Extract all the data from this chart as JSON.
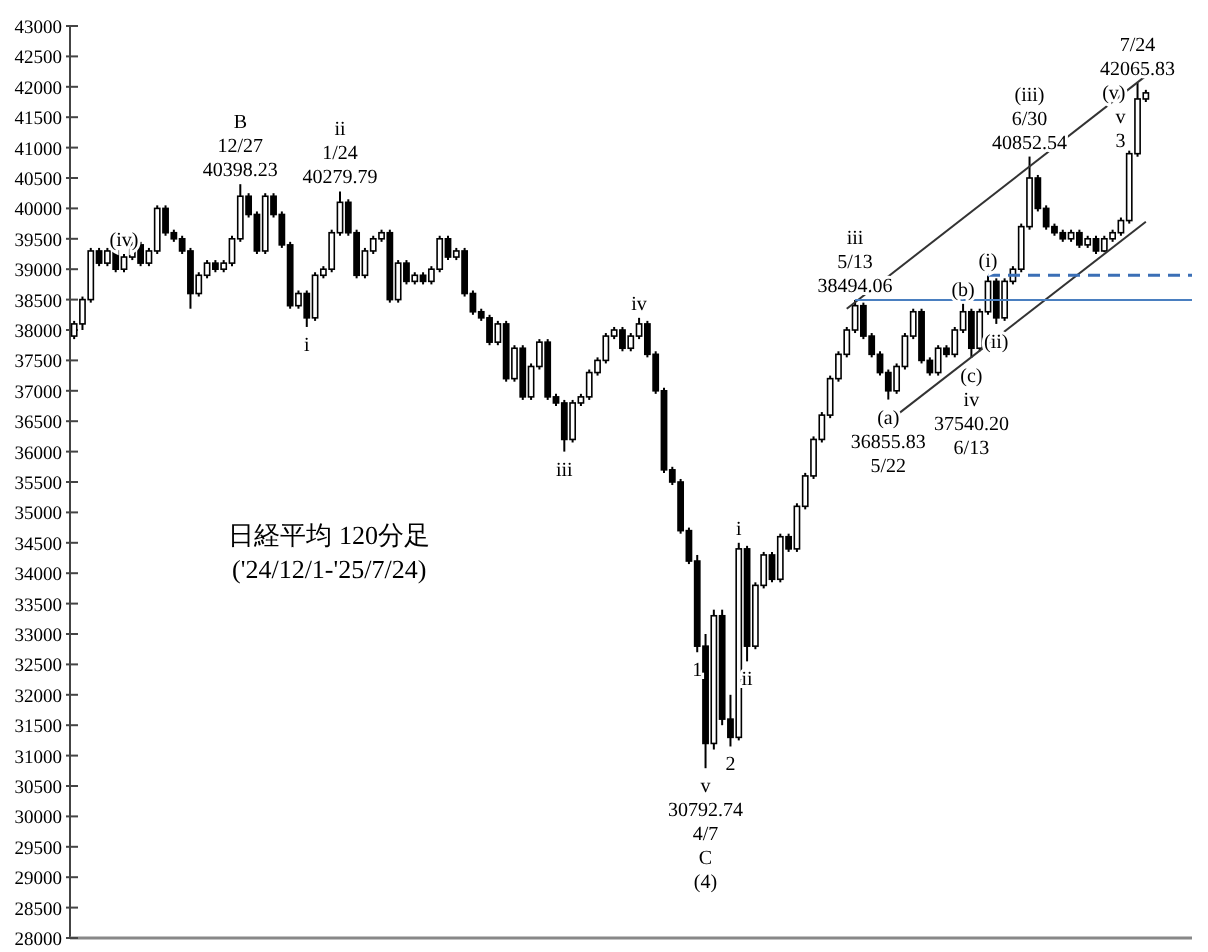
{
  "chart_data": {
    "type": "candlestick",
    "title": "日経平均 120分足",
    "subtitle": "('24/12/1-'25/7/24)",
    "categories": [
      null,
      null,
      null,
      null,
      null,
      null,
      null,
      null,
      null,
      null,
      null,
      null,
      null,
      null,
      null,
      null,
      null,
      null,
      null,
      null,
      null,
      null,
      null,
      null,
      null,
      null,
      null,
      null,
      null,
      null,
      null,
      null,
      null,
      null,
      null,
      null,
      null,
      null,
      null,
      null,
      null,
      null,
      null,
      null,
      null,
      null,
      null,
      null,
      null,
      null,
      null,
      null,
      null,
      null,
      null,
      null,
      null,
      null,
      null,
      null,
      null,
      null,
      null,
      null,
      null,
      null,
      null,
      null,
      null,
      null,
      null,
      null,
      null,
      null,
      null,
      null,
      null,
      null,
      null,
      null,
      null,
      null,
      null,
      null,
      null,
      null,
      null,
      null,
      null,
      null,
      null,
      null,
      null,
      null,
      null,
      null,
      null,
      null,
      null,
      null,
      null,
      null,
      null,
      null,
      null,
      null,
      null,
      null,
      null,
      null,
      null,
      null,
      null,
      null,
      null,
      null,
      null,
      null,
      null,
      null,
      null,
      null,
      null,
      null,
      null,
      null,
      null,
      null,
      null,
      null
    ],
    "series": [
      {
        "type": "candlestick",
        "color": "#000000",
        "ohlc": [
          [
            37900,
            38150,
            37850,
            38100
          ],
          [
            38100,
            38550,
            38000,
            38500
          ],
          [
            38500,
            39350,
            38450,
            39300
          ],
          [
            39300,
            39350,
            39050,
            39100
          ],
          [
            39100,
            39350,
            39050,
            39300
          ],
          [
            39300,
            39350,
            38950,
            39000
          ],
          [
            39000,
            39250,
            38950,
            39200
          ],
          [
            39200,
            39450,
            39150,
            39400
          ],
          [
            39400,
            39450,
            39050,
            39100
          ],
          [
            39100,
            39350,
            39050,
            39300
          ],
          [
            39300,
            40050,
            39250,
            40000
          ],
          [
            40000,
            40050,
            39550,
            39600
          ],
          [
            39600,
            39650,
            39450,
            39500
          ],
          [
            39500,
            39550,
            39250,
            39300
          ],
          [
            39300,
            39350,
            38350,
            38600
          ],
          [
            38600,
            38950,
            38550,
            38900
          ],
          [
            38900,
            39150,
            38850,
            39100
          ],
          [
            39100,
            39150,
            38950,
            39000
          ],
          [
            39000,
            39150,
            38950,
            39100
          ],
          [
            39100,
            39550,
            39050,
            39500
          ],
          [
            39500,
            40398.23,
            39450,
            40200
          ],
          [
            40200,
            40250,
            39850,
            39900
          ],
          [
            39900,
            39950,
            39250,
            39300
          ],
          [
            39300,
            40250,
            39250,
            40200
          ],
          [
            40200,
            40250,
            39850,
            39900
          ],
          [
            39900,
            39950,
            39350,
            39400
          ],
          [
            39400,
            39450,
            38350,
            38400
          ],
          [
            38400,
            38650,
            38350,
            38600
          ],
          [
            38600,
            38650,
            38050,
            38200
          ],
          [
            38200,
            38950,
            38150,
            38900
          ],
          [
            38900,
            39050,
            38850,
            39000
          ],
          [
            39000,
            39650,
            38950,
            39600
          ],
          [
            39600,
            40279.79,
            39550,
            40100
          ],
          [
            40100,
            40150,
            39550,
            39600
          ],
          [
            39600,
            39650,
            38850,
            38900
          ],
          [
            38900,
            39350,
            38850,
            39300
          ],
          [
            39300,
            39550,
            39250,
            39500
          ],
          [
            39500,
            39650,
            39450,
            39600
          ],
          [
            39600,
            39650,
            38450,
            38500
          ],
          [
            38500,
            39150,
            38450,
            39100
          ],
          [
            39100,
            39150,
            38750,
            38800
          ],
          [
            38800,
            38950,
            38750,
            38900
          ],
          [
            38900,
            38950,
            38750,
            38800
          ],
          [
            38800,
            39050,
            38750,
            39000
          ],
          [
            39000,
            39550,
            38950,
            39500
          ],
          [
            39500,
            39550,
            39150,
            39200
          ],
          [
            39200,
            39350,
            39150,
            39300
          ],
          [
            39300,
            39350,
            38550,
            38600
          ],
          [
            38600,
            38650,
            38250,
            38300
          ],
          [
            38300,
            38350,
            38150,
            38200
          ],
          [
            38200,
            38250,
            37750,
            37800
          ],
          [
            37800,
            38150,
            37750,
            38100
          ],
          [
            38100,
            38150,
            37150,
            37200
          ],
          [
            37200,
            37750,
            37150,
            37700
          ],
          [
            37700,
            37750,
            36850,
            36900
          ],
          [
            36900,
            37450,
            36850,
            37400
          ],
          [
            37400,
            37850,
            37350,
            37800
          ],
          [
            37800,
            37850,
            36850,
            36900
          ],
          [
            36900,
            36950,
            36750,
            36800
          ],
          [
            36800,
            36850,
            36000,
            36200
          ],
          [
            36200,
            36850,
            36150,
            36800
          ],
          [
            36800,
            36950,
            36750,
            36900
          ],
          [
            36900,
            37350,
            36850,
            37300
          ],
          [
            37300,
            37550,
            37250,
            37500
          ],
          [
            37500,
            37950,
            37450,
            37900
          ],
          [
            37900,
            38050,
            37850,
            38000
          ],
          [
            38000,
            38050,
            37650,
            37700
          ],
          [
            37700,
            37950,
            37650,
            37900
          ],
          [
            37900,
            38200,
            37850,
            38100
          ],
          [
            38100,
            38150,
            37550,
            37600
          ],
          [
            37600,
            37650,
            36950,
            37000
          ],
          [
            37000,
            37050,
            35650,
            35700
          ],
          [
            35700,
            35750,
            35450,
            35500
          ],
          [
            35500,
            35550,
            34650,
            34700
          ],
          [
            34700,
            34750,
            34150,
            34200
          ],
          [
            34200,
            34300,
            32700,
            32800
          ],
          [
            32800,
            33000,
            30792.74,
            31200
          ],
          [
            31200,
            33400,
            31100,
            33300
          ],
          [
            33300,
            33400,
            31500,
            31600
          ],
          [
            31600,
            32000,
            31150,
            31300
          ],
          [
            31300,
            34500,
            31250,
            34400
          ],
          [
            34400,
            34450,
            32550,
            32800
          ],
          [
            32800,
            33850,
            32750,
            33800
          ],
          [
            33800,
            34350,
            33750,
            34300
          ],
          [
            34300,
            34350,
            33850,
            33900
          ],
          [
            33900,
            34650,
            33850,
            34600
          ],
          [
            34600,
            34650,
            34350,
            34400
          ],
          [
            34400,
            35150,
            34350,
            35100
          ],
          [
            35100,
            35650,
            35050,
            35600
          ],
          [
            35600,
            36250,
            35550,
            36200
          ],
          [
            36200,
            36650,
            36150,
            36600
          ],
          [
            36600,
            37250,
            36550,
            37200
          ],
          [
            37200,
            37650,
            37150,
            37600
          ],
          [
            37600,
            38050,
            37550,
            38000
          ],
          [
            38000,
            38494.06,
            37950,
            38400
          ],
          [
            38400,
            38450,
            37850,
            37900
          ],
          [
            37900,
            37950,
            37550,
            37600
          ],
          [
            37600,
            37650,
            37250,
            37300
          ],
          [
            37300,
            37350,
            36855.83,
            37000
          ],
          [
            37000,
            37450,
            36950,
            37400
          ],
          [
            37400,
            37950,
            37350,
            37900
          ],
          [
            37900,
            38350,
            37850,
            38300
          ],
          [
            38300,
            38350,
            37450,
            37500
          ],
          [
            37500,
            37550,
            37250,
            37300
          ],
          [
            37300,
            37750,
            37250,
            37700
          ],
          [
            37700,
            37750,
            37550,
            37600
          ],
          [
            37600,
            38050,
            37550,
            38000
          ],
          [
            38000,
            38430,
            37950,
            38300
          ],
          [
            38300,
            38350,
            37540.2,
            37700
          ],
          [
            37700,
            38350,
            37650,
            38300
          ],
          [
            38300,
            38900,
            38250,
            38800
          ],
          [
            38800,
            38850,
            38100,
            38200
          ],
          [
            38200,
            38850,
            38150,
            38800
          ],
          [
            38800,
            39050,
            38750,
            39000
          ],
          [
            39000,
            39750,
            38950,
            39700
          ],
          [
            39700,
            40852.54,
            39650,
            40500
          ],
          [
            40500,
            40550,
            39950,
            40000
          ],
          [
            40000,
            40050,
            39650,
            39700
          ],
          [
            39700,
            39750,
            39550,
            39600
          ],
          [
            39600,
            39650,
            39450,
            39500
          ],
          [
            39500,
            39650,
            39450,
            39600
          ],
          [
            39600,
            39650,
            39350,
            39400
          ],
          [
            39400,
            39550,
            39350,
            39500
          ],
          [
            39500,
            39550,
            39250,
            39300
          ],
          [
            39300,
            39550,
            39280,
            39500
          ],
          [
            39500,
            39650,
            39450,
            39600
          ],
          [
            39600,
            39850,
            39550,
            39800
          ],
          [
            39800,
            40950,
            39750,
            40900
          ],
          [
            40900,
            42065.83,
            40850,
            41800
          ],
          [
            41800,
            41950,
            41750,
            41900
          ]
        ]
      },
      {
        "type": "line",
        "color": "#333333",
        "values": [
          null,
          null,
          null,
          null,
          null,
          null,
          null,
          null,
          null,
          null,
          null,
          null,
          null,
          null,
          null,
          null,
          null,
          null,
          null,
          null,
          null,
          null,
          null,
          null,
          null,
          null,
          null,
          null,
          null,
          null,
          null,
          null,
          null,
          null,
          null,
          null,
          null,
          null,
          null,
          null,
          null,
          null,
          null,
          null,
          null,
          null,
          null,
          null,
          null,
          null,
          null,
          null,
          null,
          null,
          null,
          null,
          null,
          null,
          null,
          null,
          null,
          null,
          null,
          null,
          null,
          null,
          null,
          null,
          null,
          null,
          null,
          null,
          null,
          null,
          null,
          null,
          null,
          null,
          null,
          null,
          null,
          null,
          null,
          null,
          null,
          null,
          null,
          null,
          null,
          null,
          null,
          null,
          null,
          38350,
          null,
          null,
          null,
          null,
          null,
          null,
          null,
          null,
          null,
          null,
          null,
          null,
          null,
          null,
          null,
          null,
          null,
          null,
          null,
          null,
          null,
          null,
          null,
          null,
          null,
          null,
          null,
          null,
          null,
          null,
          null,
          null,
          null,
          null,
          null,
          42180
        ]
      },
      {
        "type": "line",
        "color": "#333333",
        "values": [
          null,
          null,
          null,
          null,
          null,
          null,
          null,
          null,
          null,
          null,
          null,
          null,
          null,
          null,
          null,
          null,
          null,
          null,
          null,
          null,
          null,
          null,
          null,
          null,
          null,
          null,
          null,
          null,
          null,
          null,
          null,
          null,
          null,
          null,
          null,
          null,
          null,
          null,
          null,
          null,
          null,
          null,
          null,
          null,
          null,
          null,
          null,
          null,
          null,
          null,
          null,
          null,
          null,
          null,
          null,
          null,
          null,
          null,
          null,
          null,
          null,
          null,
          null,
          null,
          null,
          null,
          null,
          null,
          null,
          null,
          null,
          null,
          null,
          null,
          null,
          null,
          null,
          null,
          null,
          null,
          null,
          null,
          null,
          null,
          null,
          null,
          null,
          null,
          null,
          null,
          null,
          null,
          null,
          null,
          null,
          null,
          null,
          null,
          null,
          36600,
          null,
          null,
          null,
          null,
          null,
          null,
          null,
          null,
          null,
          null,
          null,
          null,
          null,
          null,
          null,
          null,
          null,
          null,
          null,
          null,
          null,
          null,
          null,
          null,
          null,
          null,
          null,
          null,
          null,
          39780
        ]
      }
    ],
    "ylim": [
      28000,
      43000
    ],
    "yticks": [
      28000,
      28500,
      29000,
      29500,
      30000,
      30500,
      31000,
      31500,
      32000,
      32500,
      33000,
      33500,
      34000,
      34500,
      35000,
      35500,
      36000,
      36500,
      37000,
      37500,
      38000,
      38500,
      39000,
      39500,
      40000,
      40500,
      41000,
      41500,
      42000,
      42500,
      43000
    ],
    "ref_lines": [
      {
        "axis": "y",
        "value": 38494.06,
        "color": "#4a7fc0",
        "line_style": "solid"
      },
      {
        "axis": "y",
        "value": 38900,
        "color": "#3b6fb6",
        "line_style": "dashed"
      }
    ],
    "annotations": [
      {
        "text": "40398.23",
        "y": 40398.23
      },
      {
        "text": "12/27",
        "y": 40398.23
      },
      {
        "text": "B",
        "y": 40398.23
      },
      {
        "text": "i",
        "y": 38050
      },
      {
        "text": "40279.79",
        "y": 40279.79
      },
      {
        "text": "1/24",
        "y": 40279.79
      },
      {
        "text": "ii",
        "y": 40279.79
      },
      {
        "text": "iii",
        "y": 36000
      },
      {
        "text": "iv",
        "y": 38200
      },
      {
        "text": "1",
        "y": 32700
      },
      {
        "text": "v",
        "y": 30792.74
      },
      {
        "text": "30792.74",
        "y": 30792.74
      },
      {
        "text": "4/7",
        "y": 30792.74
      },
      "C",
      "(4)",
      {
        "text": "2",
        "y": 31150
      },
      {
        "text": "i",
        "y": 34500
      },
      {
        "text": "ii",
        "y": 32550
      },
      {
        "text": "38494.06",
        "y": 38494.06
      },
      {
        "text": "5/13",
        "y": 38494.06
      },
      {
        "text": "iii",
        "y": 38494.06
      },
      {
        "text": "(a)",
        "y": 36855.83
      },
      {
        "text": "36855.83",
        "y": 36855.83
      },
      {
        "text": "5/22",
        "y": 36855.83
      },
      {
        "text": "(b)",
        "y": 38430
      },
      {
        "text": "(c)",
        "y": 37540.2
      },
      {
        "text": "iv",
        "y": 37540.2
      },
      {
        "text": "37540.20",
        "y": 37540.2
      },
      "6/13",
      {
        "text": "(i)",
        "y": 38900
      },
      {
        "text": "(ii)",
        "y": 38100
      },
      {
        "text": "40852.54",
        "y": 40852.54
      },
      {
        "text": "6/30",
        "y": 40852.54
      },
      {
        "text": "(iii)",
        "y": 40852.54
      },
      {
        "text": "(iv)",
        "y": 39250
      },
      {
        "text": "42065.83",
        "y": 42065.83
      },
      "7/24",
      "(v)",
      "v",
      "3"
    ],
    "grid": false
  }
}
